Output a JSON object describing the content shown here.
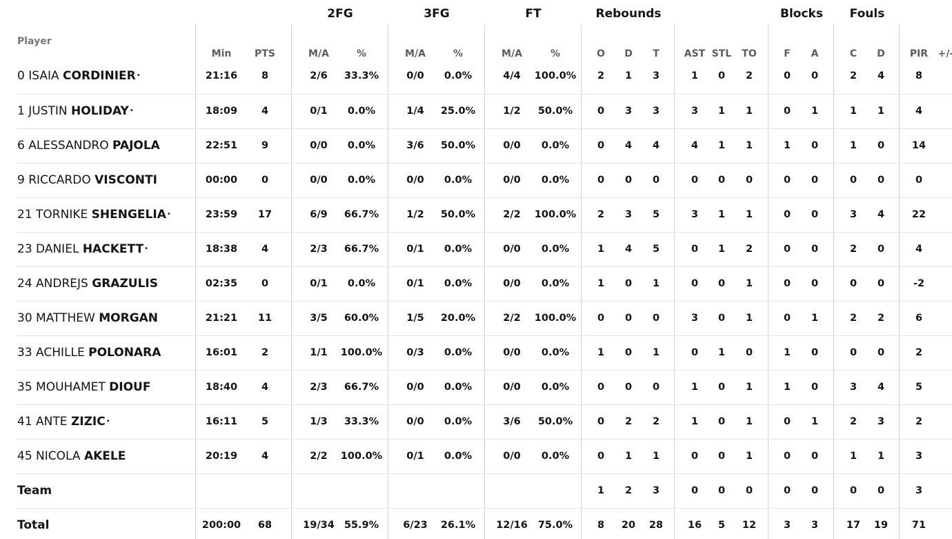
{
  "header": {
    "groups": [
      "2FG",
      "3FG",
      "FT",
      "Rebounds",
      "Blocks",
      "Fouls"
    ],
    "player_label": "Player",
    "columns": [
      "Min",
      "PTS",
      "M/A",
      "%",
      "M/A",
      "%",
      "M/A",
      "%",
      "O",
      "D",
      "T",
      "AST",
      "STL",
      "TO",
      "F",
      "A",
      "C",
      "D",
      "PIR",
      "+/-"
    ]
  },
  "players": [
    {
      "number": "0",
      "first": "ISAIA",
      "last": "CORDINIER",
      "starter": true,
      "stats": [
        "21:16",
        "8",
        "2/6",
        "33.3%",
        "0/0",
        "0.0%",
        "4/4",
        "100.0%",
        "2",
        "1",
        "3",
        "1",
        "0",
        "2",
        "0",
        "0",
        "2",
        "4",
        "8",
        ""
      ]
    },
    {
      "number": "1",
      "first": "JUSTIN",
      "last": "HOLIDAY",
      "starter": true,
      "stats": [
        "18:09",
        "4",
        "0/1",
        "0.0%",
        "1/4",
        "25.0%",
        "1/2",
        "50.0%",
        "0",
        "3",
        "3",
        "3",
        "1",
        "1",
        "0",
        "1",
        "1",
        "1",
        "4",
        ""
      ]
    },
    {
      "number": "6",
      "first": "ALESSANDRO",
      "last": "PAJOLA",
      "starter": false,
      "stats": [
        "22:51",
        "9",
        "0/0",
        "0.0%",
        "3/6",
        "50.0%",
        "0/0",
        "0.0%",
        "0",
        "4",
        "4",
        "4",
        "1",
        "1",
        "1",
        "0",
        "1",
        "0",
        "14",
        ""
      ]
    },
    {
      "number": "9",
      "first": "RICCARDO",
      "last": "VISCONTI",
      "starter": false,
      "stats": [
        "00:00",
        "0",
        "0/0",
        "0.0%",
        "0/0",
        "0.0%",
        "0/0",
        "0.0%",
        "0",
        "0",
        "0",
        "0",
        "0",
        "0",
        "0",
        "0",
        "0",
        "0",
        "0",
        ""
      ]
    },
    {
      "number": "21",
      "first": "TORNIKE",
      "last": "SHENGELIA",
      "starter": true,
      "stats": [
        "23:59",
        "17",
        "6/9",
        "66.7%",
        "1/2",
        "50.0%",
        "2/2",
        "100.0%",
        "2",
        "3",
        "5",
        "3",
        "1",
        "1",
        "0",
        "0",
        "3",
        "4",
        "22",
        ""
      ]
    },
    {
      "number": "23",
      "first": "DANIEL",
      "last": "HACKETT",
      "starter": true,
      "stats": [
        "18:38",
        "4",
        "2/3",
        "66.7%",
        "0/1",
        "0.0%",
        "0/0",
        "0.0%",
        "1",
        "4",
        "5",
        "0",
        "1",
        "2",
        "0",
        "0",
        "2",
        "0",
        "4",
        ""
      ]
    },
    {
      "number": "24",
      "first": "ANDREJS",
      "last": "GRAZULIS",
      "starter": false,
      "stats": [
        "02:35",
        "0",
        "0/1",
        "0.0%",
        "0/1",
        "0.0%",
        "0/0",
        "0.0%",
        "1",
        "0",
        "1",
        "0",
        "0",
        "1",
        "0",
        "0",
        "0",
        "0",
        "-2",
        ""
      ]
    },
    {
      "number": "30",
      "first": "MATTHEW",
      "last": "MORGAN",
      "starter": false,
      "stats": [
        "21:21",
        "11",
        "3/5",
        "60.0%",
        "1/5",
        "20.0%",
        "2/2",
        "100.0%",
        "0",
        "0",
        "0",
        "3",
        "0",
        "1",
        "0",
        "1",
        "2",
        "2",
        "6",
        ""
      ]
    },
    {
      "number": "33",
      "first": "ACHILLE",
      "last": "POLONARA",
      "starter": false,
      "stats": [
        "16:01",
        "2",
        "1/1",
        "100.0%",
        "0/3",
        "0.0%",
        "0/0",
        "0.0%",
        "1",
        "0",
        "1",
        "0",
        "1",
        "0",
        "1",
        "0",
        "0",
        "0",
        "2",
        ""
      ]
    },
    {
      "number": "35",
      "first": "MOUHAMET",
      "last": "DIOUF",
      "starter": false,
      "stats": [
        "18:40",
        "4",
        "2/3",
        "66.7%",
        "0/0",
        "0.0%",
        "0/0",
        "0.0%",
        "0",
        "0",
        "0",
        "1",
        "0",
        "1",
        "1",
        "0",
        "3",
        "4",
        "5",
        ""
      ]
    },
    {
      "number": "41",
      "first": "ANTE",
      "last": "ZIZIC",
      "starter": true,
      "stats": [
        "16:11",
        "5",
        "1/3",
        "33.3%",
        "0/0",
        "0.0%",
        "3/6",
        "50.0%",
        "0",
        "2",
        "2",
        "1",
        "0",
        "1",
        "0",
        "1",
        "2",
        "3",
        "2",
        ""
      ]
    },
    {
      "number": "45",
      "first": "NICOLA",
      "last": "AKELE",
      "starter": false,
      "stats": [
        "20:19",
        "4",
        "2/2",
        "100.0%",
        "0/1",
        "0.0%",
        "0/0",
        "0.0%",
        "0",
        "1",
        "1",
        "0",
        "0",
        "1",
        "0",
        "0",
        "1",
        "1",
        "3",
        ""
      ]
    }
  ],
  "team": {
    "label": "Team",
    "stats": [
      "",
      "",
      "",
      "",
      "",
      "",
      "",
      "",
      "1",
      "2",
      "3",
      "0",
      "0",
      "0",
      "0",
      "0",
      "0",
      "0",
      "3",
      ""
    ]
  },
  "total": {
    "label": "Total",
    "stats": [
      "200:00",
      "68",
      "19/34",
      "55.9%",
      "6/23",
      "26.1%",
      "12/16",
      "75.0%",
      "8",
      "20",
      "28",
      "16",
      "5",
      "12",
      "3",
      "3",
      "17",
      "19",
      "71",
      ""
    ]
  },
  "starter_marker": "•"
}
